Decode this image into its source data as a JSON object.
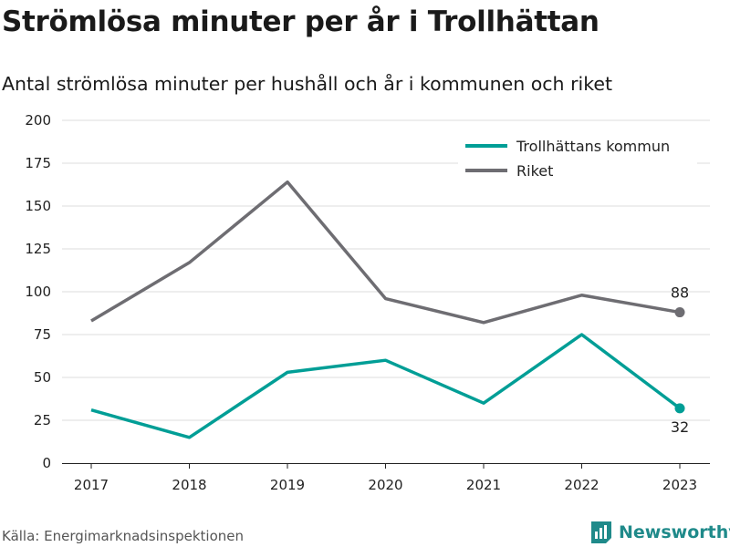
{
  "header": {
    "title": "Strömlösa minuter per år i Trollhättan",
    "subtitle": "Antal strömlösa minuter per hushåll och år i kommunen och riket"
  },
  "footer": {
    "source": "Källa: Energimarknadsinspektionen",
    "brand": "Newsworthy"
  },
  "colors": {
    "trollhattan": "#009e96",
    "riket": "#6e6d72",
    "grid": "#dddddd",
    "brand": "#1f8a8a"
  },
  "icons": {
    "brand_logo": "newsworthy-logo-icon"
  },
  "chart_data": {
    "type": "line",
    "x": [
      "2017",
      "2018",
      "2019",
      "2020",
      "2021",
      "2022",
      "2023"
    ],
    "series": [
      {
        "name": "Trollhättans kommun",
        "values": [
          31,
          15,
          53,
          60,
          35,
          75,
          32
        ],
        "end_label": "32"
      },
      {
        "name": "Riket",
        "values": [
          83,
          117,
          164,
          96,
          82,
          98,
          88
        ],
        "end_label": "88"
      }
    ],
    "y_ticks": [
      "0",
      "25",
      "50",
      "75",
      "100",
      "125",
      "150",
      "175",
      "200"
    ],
    "ylim": [
      0,
      200
    ],
    "grid": "horizontal",
    "legend_position": "top-right"
  }
}
